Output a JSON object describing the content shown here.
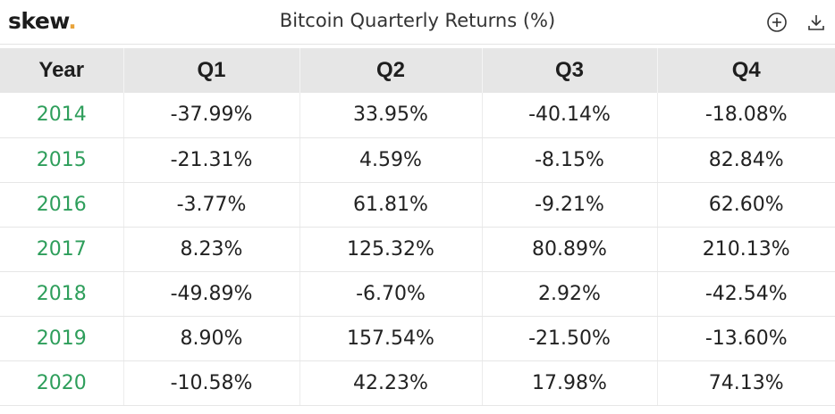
{
  "app": {
    "logo_text": "skew",
    "logo_dot": ".",
    "title": "Bitcoin Quarterly Returns (%)"
  },
  "icons": {
    "add": "plus-circle-icon",
    "download": "download-icon"
  },
  "colors": {
    "year": "#2e9e5b",
    "header_bg": "#e6e6e6",
    "logo_dot": "#e8a33a"
  },
  "table": {
    "headers": [
      "Year",
      "Q1",
      "Q2",
      "Q3",
      "Q4"
    ],
    "rows": [
      [
        "2014",
        "-37.99%",
        "33.95%",
        "-40.14%",
        "-18.08%"
      ],
      [
        "2015",
        "-21.31%",
        "4.59%",
        "-8.15%",
        "82.84%"
      ],
      [
        "2016",
        "-3.77%",
        "61.81%",
        "-9.21%",
        "62.60%"
      ],
      [
        "2017",
        "8.23%",
        "125.32%",
        "80.89%",
        "210.13%"
      ],
      [
        "2018",
        "-49.89%",
        "-6.70%",
        "2.92%",
        "-42.54%"
      ],
      [
        "2019",
        "8.90%",
        "157.54%",
        "-21.50%",
        "-13.60%"
      ],
      [
        "2020",
        "-10.58%",
        "42.23%",
        "17.98%",
        "74.13%"
      ]
    ]
  }
}
